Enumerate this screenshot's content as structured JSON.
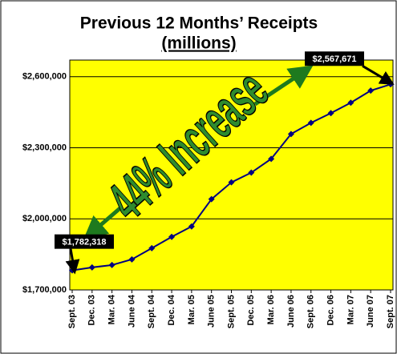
{
  "chart_data": {
    "type": "line",
    "title": "Previous 12 Months’ Receipts",
    "subtitle": "(millions)",
    "annotation": "44% Increase",
    "categories": [
      "Sept. 03",
      "Dec. 03",
      "Mar. 04",
      "June 04",
      "Sept. 04",
      "Dec. 04",
      "Mar. 05",
      "June 05",
      "Sept. 05",
      "Dec. 05",
      "Mar. 06",
      "June 06",
      "Sept. 06",
      "Dec. 06",
      "Mar. 07",
      "June 07",
      "Sept. 07"
    ],
    "series": [
      {
        "color": "#000080",
        "values": [
          1782318,
          1795000,
          1805000,
          1829000,
          1876000,
          1924000,
          1968000,
          2083000,
          2154000,
          2195000,
          2253000,
          2358000,
          2405000,
          2446000,
          2490000,
          2541000,
          2567671
        ],
        "value_labels": [
          "$1,782,318",
          null,
          null,
          null,
          null,
          null,
          null,
          null,
          null,
          null,
          null,
          null,
          null,
          null,
          null,
          null,
          "$2,567,671"
        ]
      }
    ],
    "ylim": [
      1700000,
      2670000
    ],
    "yticks": [
      {
        "value": 1700000,
        "label": "$1,700,000"
      },
      {
        "value": 2000000,
        "label": "$2,000,000"
      },
      {
        "value": 2300000,
        "label": "$2,300,000"
      },
      {
        "value": 2600000,
        "label": "$2,600,000"
      }
    ],
    "grid": true,
    "background": "#ffff00"
  }
}
